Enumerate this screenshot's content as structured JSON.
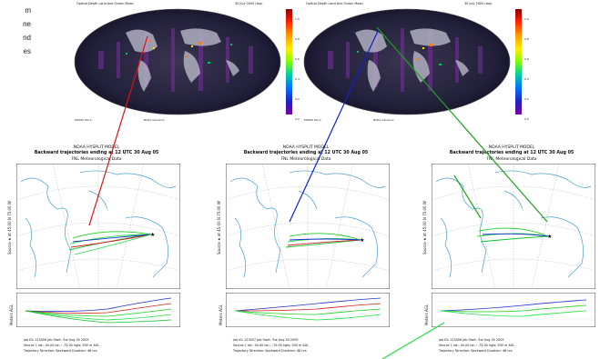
{
  "side_text": [
    "m",
    "ne",
    "nd",
    "es"
  ],
  "satellite_panels": [
    {
      "title": "Optical Depth Land And Ocean Mean",
      "date": "30 July 2005 (top)",
      "footer_left": "MODIS Terra",
      "footer_right": "NASA Giovanni"
    },
    {
      "title": "Optical Depth Land And Ocean Mean",
      "date": "30 July 2005 (top)",
      "footer_left": "MODIS Terra",
      "footer_right": "NASA Giovanni"
    }
  ],
  "colorbar": {
    "labels": [
      "1.0",
      "0.8",
      "0.6",
      "0.4",
      "0.2",
      "0.0"
    ],
    "colors": [
      "#8b0000",
      "#ff2000",
      "#ff9a00",
      "#ffee00",
      "#7cfc00",
      "#00d0a0",
      "#0070ff",
      "#2020c0",
      "#7a00a0"
    ]
  },
  "hysplit_panels": [
    {
      "header1": "NOAA HYSPLIT MODEL",
      "header2": "Backward trajectories ending at 12 UTC 30 Aug 05",
      "header3": "FNL Meteorological Data",
      "ylabel": "Source ★ at 45.00 N 75.00 W",
      "vlabel": "Meters AGL",
      "footer1": "Job ID: 123456   Job Start: Tue Aug 30 2005",
      "footer2": "Source 1  lat.: 45.00  lon.: -75.00  hgts: 500 m AGL",
      "footer3": "Trajectory Direction: Backward  Duration: 48 hrs"
    },
    {
      "header1": "NOAA HYSPLIT MODEL",
      "header2": "Backward trajectories ending at 12 UTC 30 Aug 05",
      "header3": "FNL Meteorological Data",
      "ylabel": "Source ★ at 45.00 N 75.00 W",
      "vlabel": "Meters AGL",
      "footer1": "Job ID: 123457   Job Start: Tue Aug 30 2005",
      "footer2": "Source 1  lat.: 45.00  lon.: -75.00  hgts: 500 m AGL",
      "footer3": "Trajectory Direction: Backward  Duration: 48 hrs"
    },
    {
      "header1": "NOAA HYSPLIT MODEL",
      "header2": "Backward trajectories ending at 12 UTC 30 Aug 05",
      "header3": "FNL Meteorological Data",
      "ylabel": "Source ★ at 45.00 N 75.00 W",
      "vlabel": "Meters AGL",
      "footer1": "Job ID: 123458   Job Start: Tue Aug 30 2005",
      "footer2": "Source 1  lat.: 45.00  lon.: -75.00  hgts: 500 m AGL",
      "footer3": "Trajectory Direction: Backward  Duration: 48 hrs"
    }
  ],
  "connector_colors": {
    "red": "#e01010",
    "blue": "#1020d0",
    "green": "#20a020",
    "lime": "#20e040"
  }
}
